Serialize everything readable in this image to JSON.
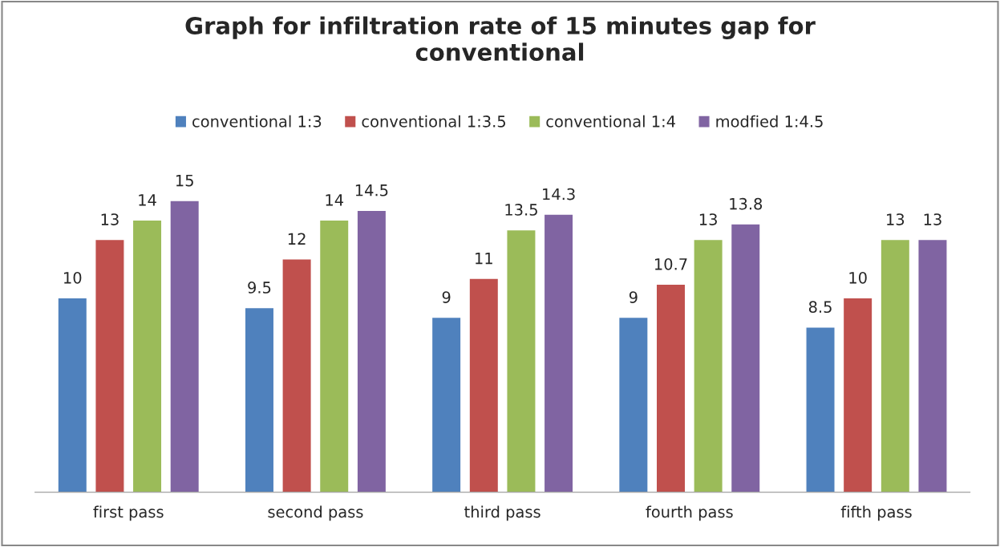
{
  "chart_data": {
    "type": "bar",
    "title": "Graph for infiltration rate of 15 minutes gap for\nconventional",
    "categories": [
      "first pass",
      "second pass",
      "third pass",
      "fourth pass",
      "fifth pass"
    ],
    "series": [
      {
        "name": "conventional 1:3",
        "color": "#4f81bd",
        "values": [
          10,
          9.5,
          9,
          9,
          8.5
        ]
      },
      {
        "name": "conventional 1:3.5",
        "color": "#c0504d",
        "values": [
          13,
          12,
          11,
          10.7,
          10
        ]
      },
      {
        "name": "conventional 1:4",
        "color": "#9bbb59",
        "values": [
          14,
          14,
          13.5,
          13,
          13
        ]
      },
      {
        "name": "modfied 1:4.5",
        "color": "#8064a2",
        "values": [
          15,
          14.5,
          14.3,
          13.8,
          13
        ]
      }
    ],
    "data_labels": true,
    "legend": "top",
    "grid": false
  }
}
